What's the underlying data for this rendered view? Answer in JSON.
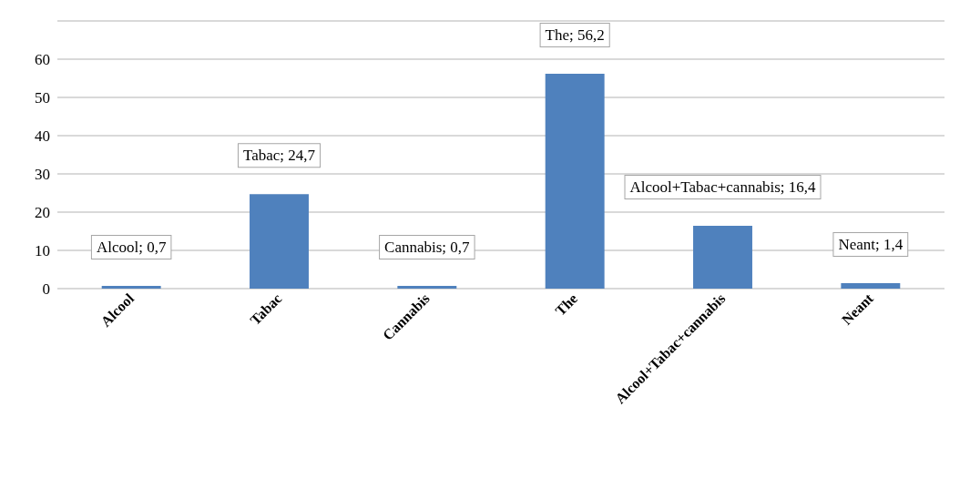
{
  "chart_data": {
    "type": "bar",
    "categories": [
      "Alcool",
      "Tabac",
      "Cannabis",
      "The",
      "Alcool+Tabac+cannabis",
      "Neant"
    ],
    "values": [
      0.7,
      24.7,
      0.7,
      56.2,
      16.4,
      1.4
    ],
    "value_labels": [
      "Alcool; 0,7",
      "Tabac; 24,7",
      "Cannabis; 0,7",
      "The; 56,2",
      "Alcool+Tabac+cannabis; 16,4",
      "Neant; 1,4"
    ],
    "color": "#4f81bd",
    "ylim": [
      0,
      70
    ],
    "yticks": [
      0,
      10,
      20,
      30,
      40,
      50,
      60,
      {
        "value": 70,
        "label": null
      }
    ],
    "grid": "y"
  }
}
